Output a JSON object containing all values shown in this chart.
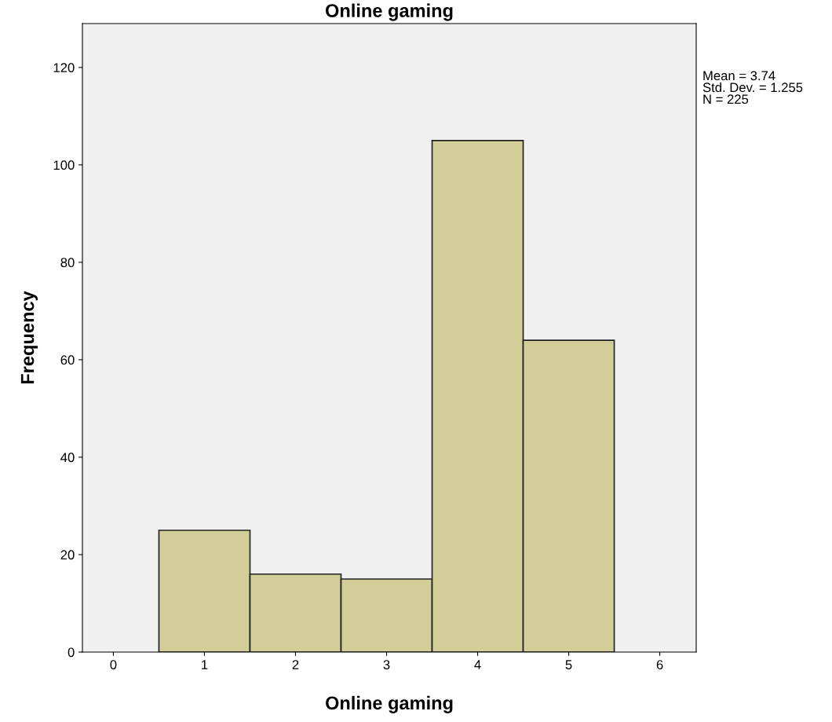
{
  "chart_data": {
    "type": "histogram",
    "title": "Online gaming",
    "xlabel": "Online gaming",
    "ylabel": "Frequency",
    "bins": [
      0.5,
      1.5,
      2.5,
      3.5,
      4.5,
      5.5
    ],
    "values": [
      25,
      16,
      15,
      105,
      64
    ],
    "color": "#d3ce97",
    "xlim": [
      -0.34,
      6.4
    ],
    "xticks": [
      0,
      1,
      2,
      3,
      4,
      5,
      6
    ],
    "ylim": [
      0,
      129
    ],
    "yticks": [
      0,
      20,
      40,
      60,
      80,
      100,
      120
    ],
    "grid": false,
    "legend": false,
    "annotations": [
      "Mean = 3.74\nStd. Dev. = 1.255\nN = 225"
    ]
  }
}
